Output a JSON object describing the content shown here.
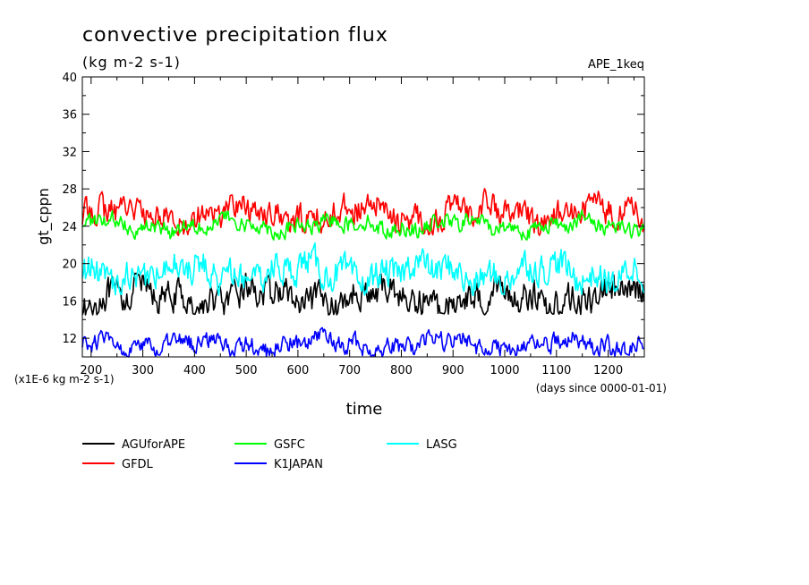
{
  "chart_data": {
    "type": "line",
    "title": "convective precipitation flux",
    "subtitle": "(kg m-2 s-1)",
    "tag": "APE_1keq",
    "ylabel": "gt_cppn",
    "xlabel": "time",
    "y_unit_note": "(x1E-6 kg m-2 s-1)",
    "x_unit_note": "(days since 0000-01-01)",
    "xlim": [
      183,
      1270
    ],
    "ylim": [
      10,
      40
    ],
    "x_ticks": [
      200,
      300,
      400,
      500,
      600,
      700,
      800,
      900,
      1000,
      1100,
      1200
    ],
    "x_tick_labels": [
      "200",
      "300",
      "400",
      "500",
      "600",
      "700",
      "800",
      "900",
      "1000",
      "1100",
      "1200"
    ],
    "y_ticks": [
      12,
      16,
      20,
      24,
      28,
      32,
      36,
      40
    ],
    "y_tick_labels": [
      "12",
      "16",
      "20",
      "24",
      "28",
      "32",
      "36",
      "40"
    ],
    "grid": false,
    "legend_position": "bottom",
    "series": [
      {
        "name": "AGUforAPE",
        "color": "#000000",
        "mean": 16.3,
        "amp": 1.3,
        "lo": 14.5,
        "hi": 19.0
      },
      {
        "name": "GFDL",
        "color": "#ff0000",
        "mean": 25.3,
        "amp": 1.2,
        "lo": 23.0,
        "hi": 29.0
      },
      {
        "name": "GSFC",
        "color": "#00ff00",
        "mean": 24.1,
        "amp": 0.7,
        "lo": 22.5,
        "hi": 26.0
      },
      {
        "name": "K1JAPAN",
        "color": "#0000ff",
        "mean": 11.3,
        "amp": 0.8,
        "lo": 10.0,
        "hi": 13.5
      },
      {
        "name": "LASG",
        "color": "#00ffff",
        "mean": 19.0,
        "amp": 1.3,
        "lo": 16.5,
        "hi": 22.5
      }
    ]
  }
}
